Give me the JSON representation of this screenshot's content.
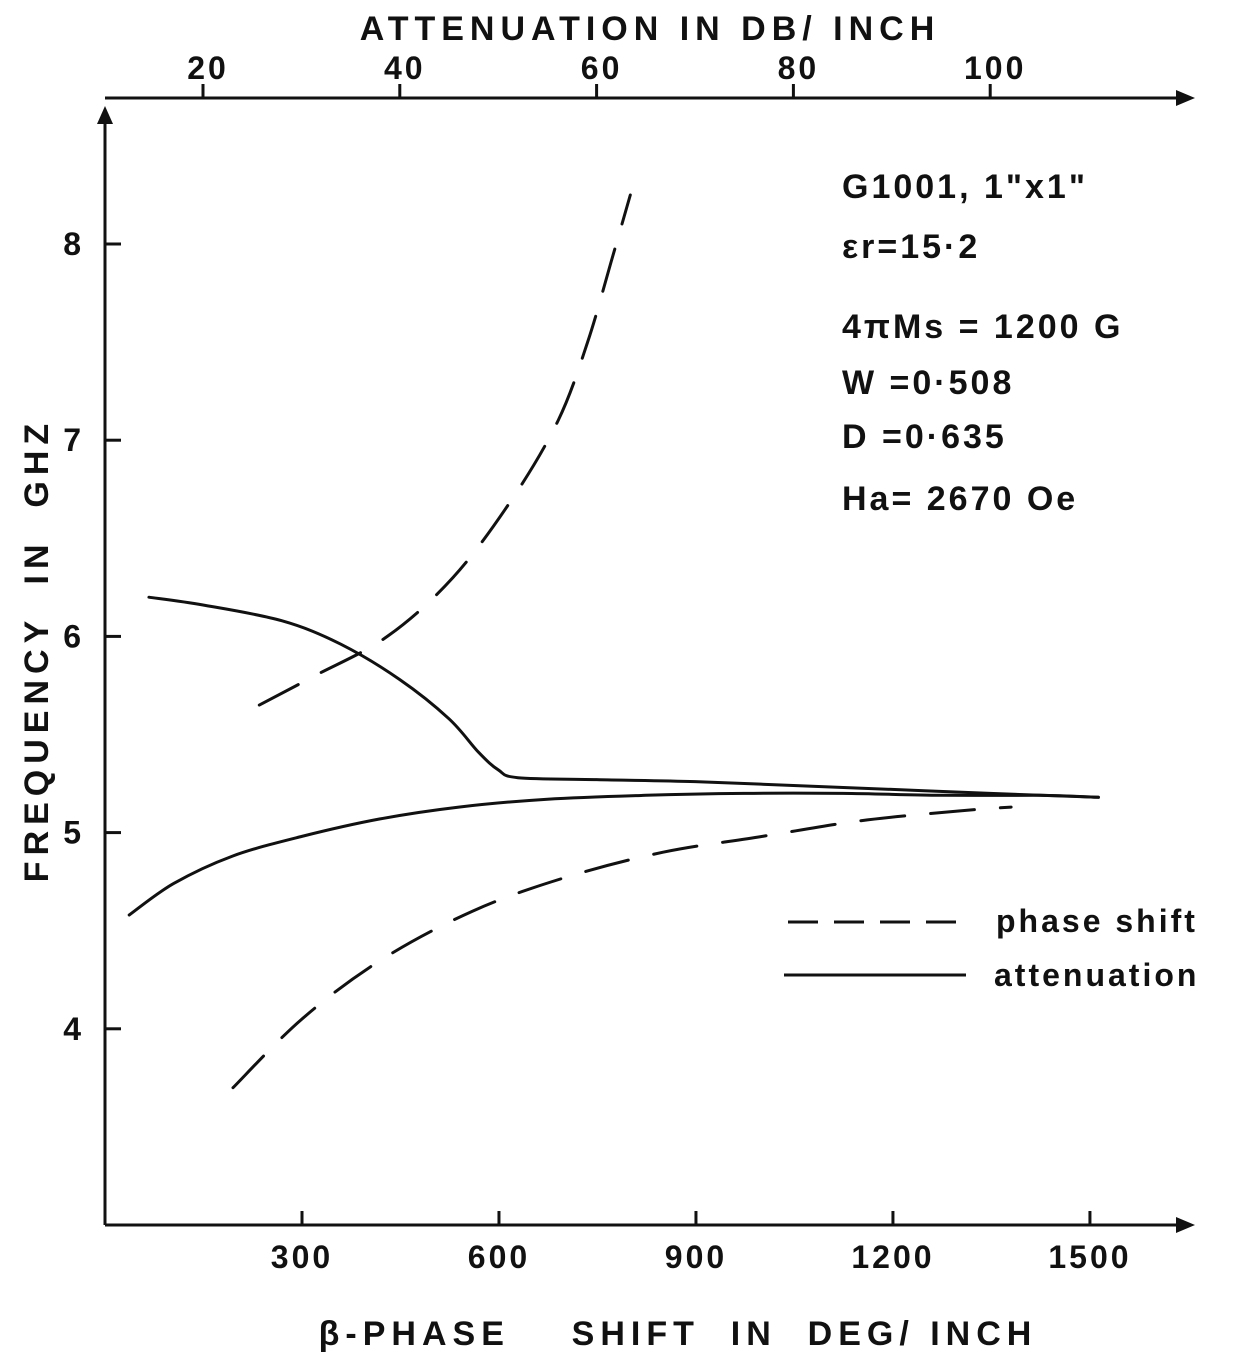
{
  "chart_data": {
    "type": "line",
    "title": "",
    "xlabel": "β-PHASE    SHIFT  IN  DEG/ INCH",
    "x2label": "ATTENUATION  IN  DB/ INCH",
    "ylabel": "FREQUENCY  IN  GHZ",
    "xlim": [
      0,
      1660
    ],
    "x2lim": [
      10,
      110
    ],
    "ylim": [
      3.0,
      8.7
    ],
    "grid": false,
    "legend_position": "bottom-right",
    "x_ticks": [
      300,
      600,
      900,
      1200,
      1500
    ],
    "x_tick_labels": [
      "300",
      "600",
      "900",
      "1200",
      "1500"
    ],
    "x2_ticks": [
      20,
      40,
      60,
      80,
      100
    ],
    "x2_tick_labels": [
      "20",
      "40",
      "60",
      "80",
      "100"
    ],
    "y_ticks": [
      4,
      5,
      6,
      7,
      8
    ],
    "y_tick_labels": [
      "4",
      "5",
      "6",
      "7",
      "8"
    ],
    "annotations": [
      "G1001, 1\"x1\"",
      "εr=15·2",
      "4πMs = 1200 G",
      "W =0·508",
      "D =0·635",
      "Ha= 2670 Oe"
    ],
    "series": [
      {
        "name": "phase shift",
        "style": "dashed",
        "x_axis": "bottom",
        "branch": "upper",
        "points": [
          [
            235,
            5.65
          ],
          [
            320,
            5.8
          ],
          [
            430,
            6.0
          ],
          [
            530,
            6.3
          ],
          [
            620,
            6.7
          ],
          [
            690,
            7.1
          ],
          [
            735,
            7.5
          ],
          [
            770,
            7.9
          ],
          [
            800,
            8.25
          ]
        ]
      },
      {
        "name": "phase shift",
        "style": "dashed",
        "x_axis": "bottom",
        "branch": "lower",
        "points": [
          [
            195,
            3.7
          ],
          [
            300,
            4.05
          ],
          [
            420,
            4.35
          ],
          [
            560,
            4.6
          ],
          [
            700,
            4.77
          ],
          [
            850,
            4.9
          ],
          [
            1000,
            4.98
          ],
          [
            1150,
            5.06
          ],
          [
            1300,
            5.11
          ],
          [
            1380,
            5.13
          ]
        ]
      },
      {
        "name": "attenuation",
        "style": "solid",
        "x_axis": "top",
        "branch": "upper",
        "points": [
          [
            14.5,
            6.2
          ],
          [
            20,
            6.16
          ],
          [
            28,
            6.08
          ],
          [
            34,
            5.96
          ],
          [
            40,
            5.78
          ],
          [
            45,
            5.58
          ],
          [
            48,
            5.41
          ],
          [
            50,
            5.32
          ],
          [
            52,
            5.28
          ],
          [
            60,
            5.27
          ],
          [
            70,
            5.26
          ],
          [
            80,
            5.24
          ],
          [
            90,
            5.22
          ],
          [
            100,
            5.2
          ],
          [
            111,
            5.18
          ]
        ]
      },
      {
        "name": "attenuation",
        "style": "solid",
        "x_axis": "top",
        "branch": "lower",
        "points": [
          [
            12.5,
            4.58
          ],
          [
            17,
            4.74
          ],
          [
            23,
            4.88
          ],
          [
            30,
            4.98
          ],
          [
            38,
            5.07
          ],
          [
            46,
            5.13
          ],
          [
            55,
            5.17
          ],
          [
            65,
            5.19
          ],
          [
            75,
            5.2
          ],
          [
            85,
            5.2
          ],
          [
            95,
            5.19
          ],
          [
            105,
            5.19
          ],
          [
            111,
            5.18
          ]
        ]
      }
    ]
  },
  "legend": {
    "phase_label": "phase shift",
    "atten_label": "attenuation"
  }
}
